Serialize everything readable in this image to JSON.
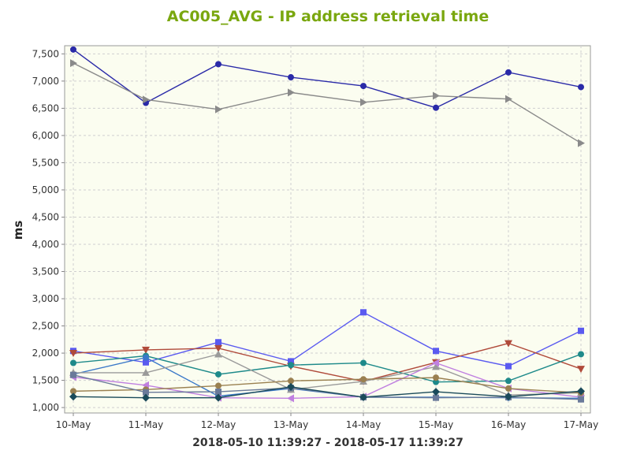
{
  "chart_data": {
    "type": "line",
    "title": "AC005_AVG - IP address retrieval time",
    "xlabel": "2018-05-10 11:39:27 - 2018-05-17 11:39:27",
    "ylabel": "ms",
    "categories": [
      "10-May",
      "11-May",
      "12-May",
      "13-May",
      "14-May",
      "15-May",
      "16-May",
      "17-May"
    ],
    "ylim": [
      900,
      7650
    ],
    "yticks": [
      1000,
      1500,
      2000,
      2500,
      3000,
      3500,
      4000,
      4500,
      5000,
      5500,
      6000,
      6500,
      7000,
      7500
    ],
    "ytick_labels": [
      "1,000",
      "1,500",
      "2,000",
      "2,500",
      "3,000",
      "3,500",
      "4,000",
      "4,500",
      "5,000",
      "5,500",
      "6,000",
      "6,500",
      "7,000",
      "7,500"
    ],
    "grid": true,
    "colors": {
      "title": "#7aa70f",
      "plot_background": "#fbfdf0",
      "grid": "#cfcfcf",
      "axis_text": "#333333"
    },
    "series": [
      {
        "color": "#2a2aa8",
        "marker": "circle",
        "values": [
          7580,
          6600,
          7310,
          7070,
          6910,
          6510,
          7160,
          6890
        ]
      },
      {
        "color": "#8a8a8a",
        "marker": "triangle-right",
        "values": [
          7330,
          6660,
          6480,
          6790,
          6610,
          6730,
          6670,
          5860
        ]
      },
      {
        "color": "#5a5af0",
        "marker": "square",
        "values": [
          2040,
          1830,
          2200,
          1850,
          2750,
          2040,
          1760,
          2410
        ]
      },
      {
        "color": "#b04a3a",
        "marker": "triangle-down",
        "values": [
          2000,
          2060,
          2090,
          1760,
          1480,
          1830,
          2180,
          1710
        ]
      },
      {
        "color": "#1e8a8a",
        "marker": "circle",
        "values": [
          1820,
          1950,
          1610,
          1780,
          1820,
          1470,
          1490,
          1980
        ]
      },
      {
        "color": "#3a78c8",
        "marker": "circle",
        "values": [
          1610,
          1920,
          1210,
          1350,
          1190,
          1190,
          1180,
          1170
        ]
      },
      {
        "color": "#9a9a9a",
        "marker": "triangle-up",
        "values": [
          1640,
          1640,
          1980,
          1330,
          1480,
          1750,
          1230,
          1270
        ]
      },
      {
        "color": "#c080e0",
        "marker": "triangle-left",
        "values": [
          1560,
          1410,
          1180,
          1170,
          1200,
          1820,
          1350,
          1190
        ]
      },
      {
        "color": "#9a8050",
        "marker": "circle",
        "values": [
          1300,
          1330,
          1400,
          1490,
          1520,
          1550,
          1350,
          1270
        ]
      },
      {
        "color": "#6a7a9a",
        "marker": "square",
        "values": [
          1600,
          1280,
          1290,
          1360,
          1190,
          1180,
          1190,
          1150
        ]
      },
      {
        "color": "#1a4a5a",
        "marker": "diamond",
        "values": [
          1200,
          1180,
          1180,
          1380,
          1190,
          1290,
          1200,
          1300
        ]
      }
    ]
  }
}
